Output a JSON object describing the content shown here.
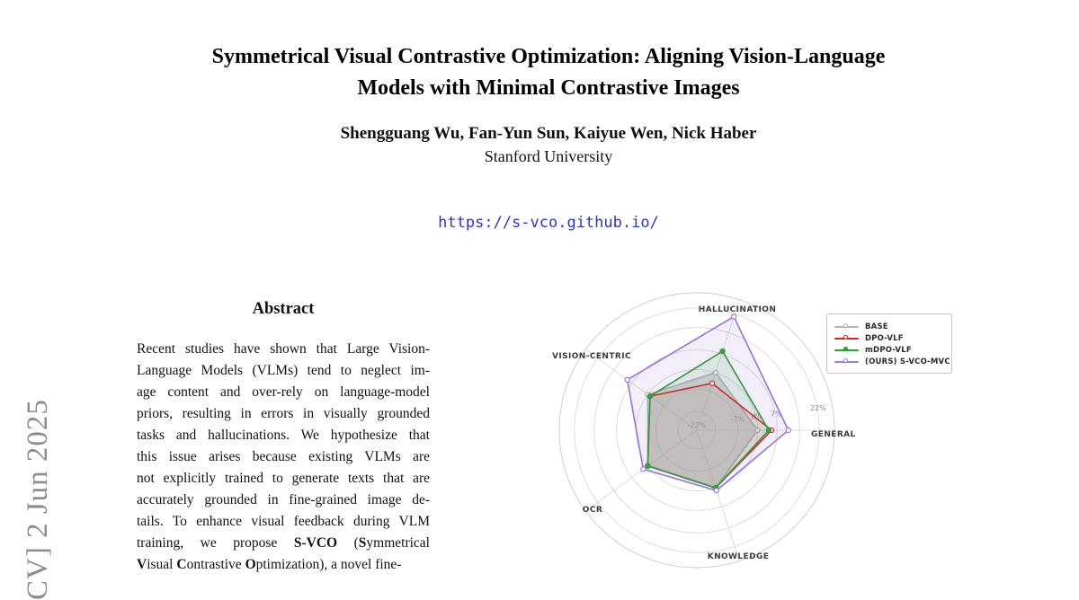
{
  "stamp": {
    "text": "CV] 2 Jun 2025"
  },
  "header": {
    "title_line1": "Symmetrical Visual Contrastive Optimization: Aligning Vision-Language",
    "title_line2": "Models with Minimal Contrastive Images",
    "authors": "Shengguang Wu, Fan-Yun Sun, Kaiyue Wen, Nick Haber",
    "affiliation": "Stanford University",
    "url": "https://s-vco.github.io/"
  },
  "abstract": {
    "heading": "Abstract",
    "lines": [
      [
        {
          "t": "Recent studies have shown that Large Vision-"
        }
      ],
      [
        {
          "t": "Language Models (VLMs) tend to neglect im-"
        }
      ],
      [
        {
          "t": "age content and over-rely on language-model"
        }
      ],
      [
        {
          "t": "priors, resulting in errors in visually grounded"
        }
      ],
      [
        {
          "t": "tasks and hallucinations. We hypothesize that"
        }
      ],
      [
        {
          "t": "this issue arises because existing VLMs are"
        }
      ],
      [
        {
          "t": "not explicitly trained to generate texts that are"
        }
      ],
      [
        {
          "t": "accurately grounded in fine-grained image de-"
        }
      ],
      [
        {
          "t": "tails. To enhance visual feedback during VLM"
        }
      ],
      [
        {
          "t": "training, we propose "
        },
        {
          "t": "S-VCO",
          "b": true
        },
        {
          "t": " ("
        },
        {
          "t": "S",
          "b": true
        },
        {
          "t": "ymmetrical"
        }
      ],
      [
        {
          "t": "V",
          "b": true
        },
        {
          "t": "isual "
        },
        {
          "t": "C",
          "b": true
        },
        {
          "t": "ontrastive "
        },
        {
          "t": "O",
          "b": true
        },
        {
          "t": "ptimization), a novel fine-"
        }
      ]
    ]
  },
  "chart_data": {
    "type": "radar",
    "title": "",
    "unit": "percent gain vs BASE",
    "axes": [
      {
        "label": "HALLUCINATION",
        "angle_deg": -72
      },
      {
        "label": "GENERAL",
        "angle_deg": 0
      },
      {
        "label": "KNOWLEDGE",
        "angle_deg": 72
      },
      {
        "label": "OCR",
        "angle_deg": 144
      },
      {
        "label": "VISION-CENTRIC",
        "angle_deg": -144
      }
    ],
    "series": [
      {
        "name": "BASE",
        "color": "#b5b5b5",
        "fill_opacity": 0.42,
        "marker": "open",
        "values": [
          0,
          0,
          0,
          0,
          0
        ]
      },
      {
        "name": "DPO-VLF",
        "color": "#d62222",
        "fill_opacity": 0.09,
        "marker": "open",
        "values": [
          -4,
          5,
          0,
          0,
          -1
        ]
      },
      {
        "name": "mDPO-VLF",
        "color": "#2f9e2f",
        "fill_opacity": 0.12,
        "marker": "filled",
        "values": [
          8,
          4,
          0,
          0,
          -1
        ]
      },
      {
        "name": "(OURS) S-VCO-MVC",
        "color": "#9b79d6",
        "fill_opacity": 0.12,
        "marker": "open",
        "values": [
          21,
          11,
          1,
          2,
          9
        ]
      }
    ],
    "radial_ticks": [
      {
        "value": -22,
        "label": "-22%"
      },
      {
        "value": -15,
        "label": ""
      },
      {
        "value": -7,
        "label": "-7%"
      },
      {
        "value": 0,
        "label": "0%"
      },
      {
        "value": 7,
        "label": "7%"
      },
      {
        "value": 15,
        "label": ""
      },
      {
        "value": 22,
        "label": "22%"
      }
    ],
    "rlim": [
      -22,
      28
    ],
    "grid": true,
    "legend_position": "upper right"
  }
}
